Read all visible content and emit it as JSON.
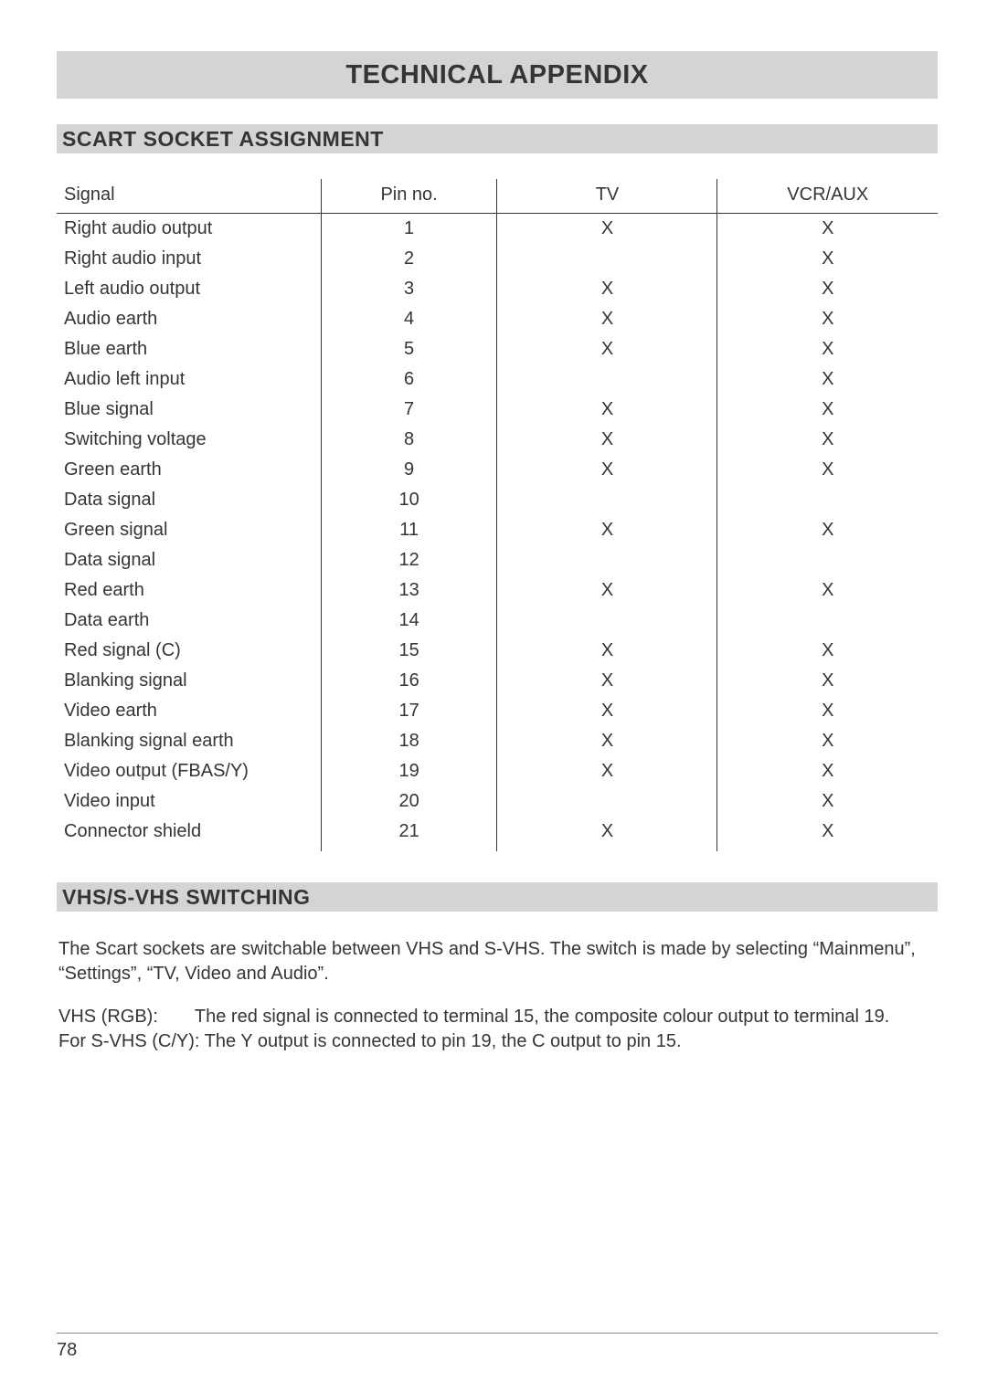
{
  "page_title": "TECHNICAL APPENDIX",
  "section1": {
    "title": "SCART SOCKET ASSIGNMENT"
  },
  "table": {
    "columns": [
      "Signal",
      "Pin no.",
      "TV",
      "VCR/AUX"
    ],
    "rows": [
      [
        "Right audio output",
        "1",
        "X",
        "X"
      ],
      [
        "Right audio input",
        "2",
        "",
        "X"
      ],
      [
        "Left audio output",
        "3",
        "X",
        "X"
      ],
      [
        "Audio earth",
        "4",
        "X",
        "X"
      ],
      [
        "Blue earth",
        "5",
        "X",
        "X"
      ],
      [
        "Audio left input",
        "6",
        "",
        "X"
      ],
      [
        "Blue signal",
        "7",
        "X",
        "X"
      ],
      [
        "Switching voltage",
        "8",
        "X",
        "X"
      ],
      [
        "Green earth",
        "9",
        "X",
        "X"
      ],
      [
        "Data signal",
        "10",
        "",
        ""
      ],
      [
        "Green signal",
        "11",
        "X",
        "X"
      ],
      [
        "Data signal",
        "12",
        "",
        ""
      ],
      [
        "Red earth",
        "13",
        "X",
        "X"
      ],
      [
        "Data earth",
        "14",
        "",
        ""
      ],
      [
        "Red signal (C)",
        "15",
        "X",
        "X"
      ],
      [
        "Blanking signal",
        "16",
        "X",
        "X"
      ],
      [
        "Video earth",
        "17",
        "X",
        "X"
      ],
      [
        "Blanking signal earth",
        "18",
        "X",
        "X"
      ],
      [
        "Video output (FBAS/Y)",
        "19",
        "X",
        "X"
      ],
      [
        "Video input",
        "20",
        "",
        "X"
      ],
      [
        "Connector shield",
        "21",
        "X",
        "X"
      ]
    ]
  },
  "section2": {
    "title": "VHS/S-VHS SWITCHING"
  },
  "para1": "The Scart sockets are switchable between VHS and S-VHS. The switch is made by selecting “Mainmenu”, “Settings”, “TV, Video and Audio”.",
  "para2_line1": "VHS (RGB):  The red signal is connected to terminal 15, the composite colour output to terminal 19.",
  "para2_line2": "For S-VHS (C/Y): The Y output is connected to pin 19, the C output to pin 15.",
  "page_number": "78"
}
